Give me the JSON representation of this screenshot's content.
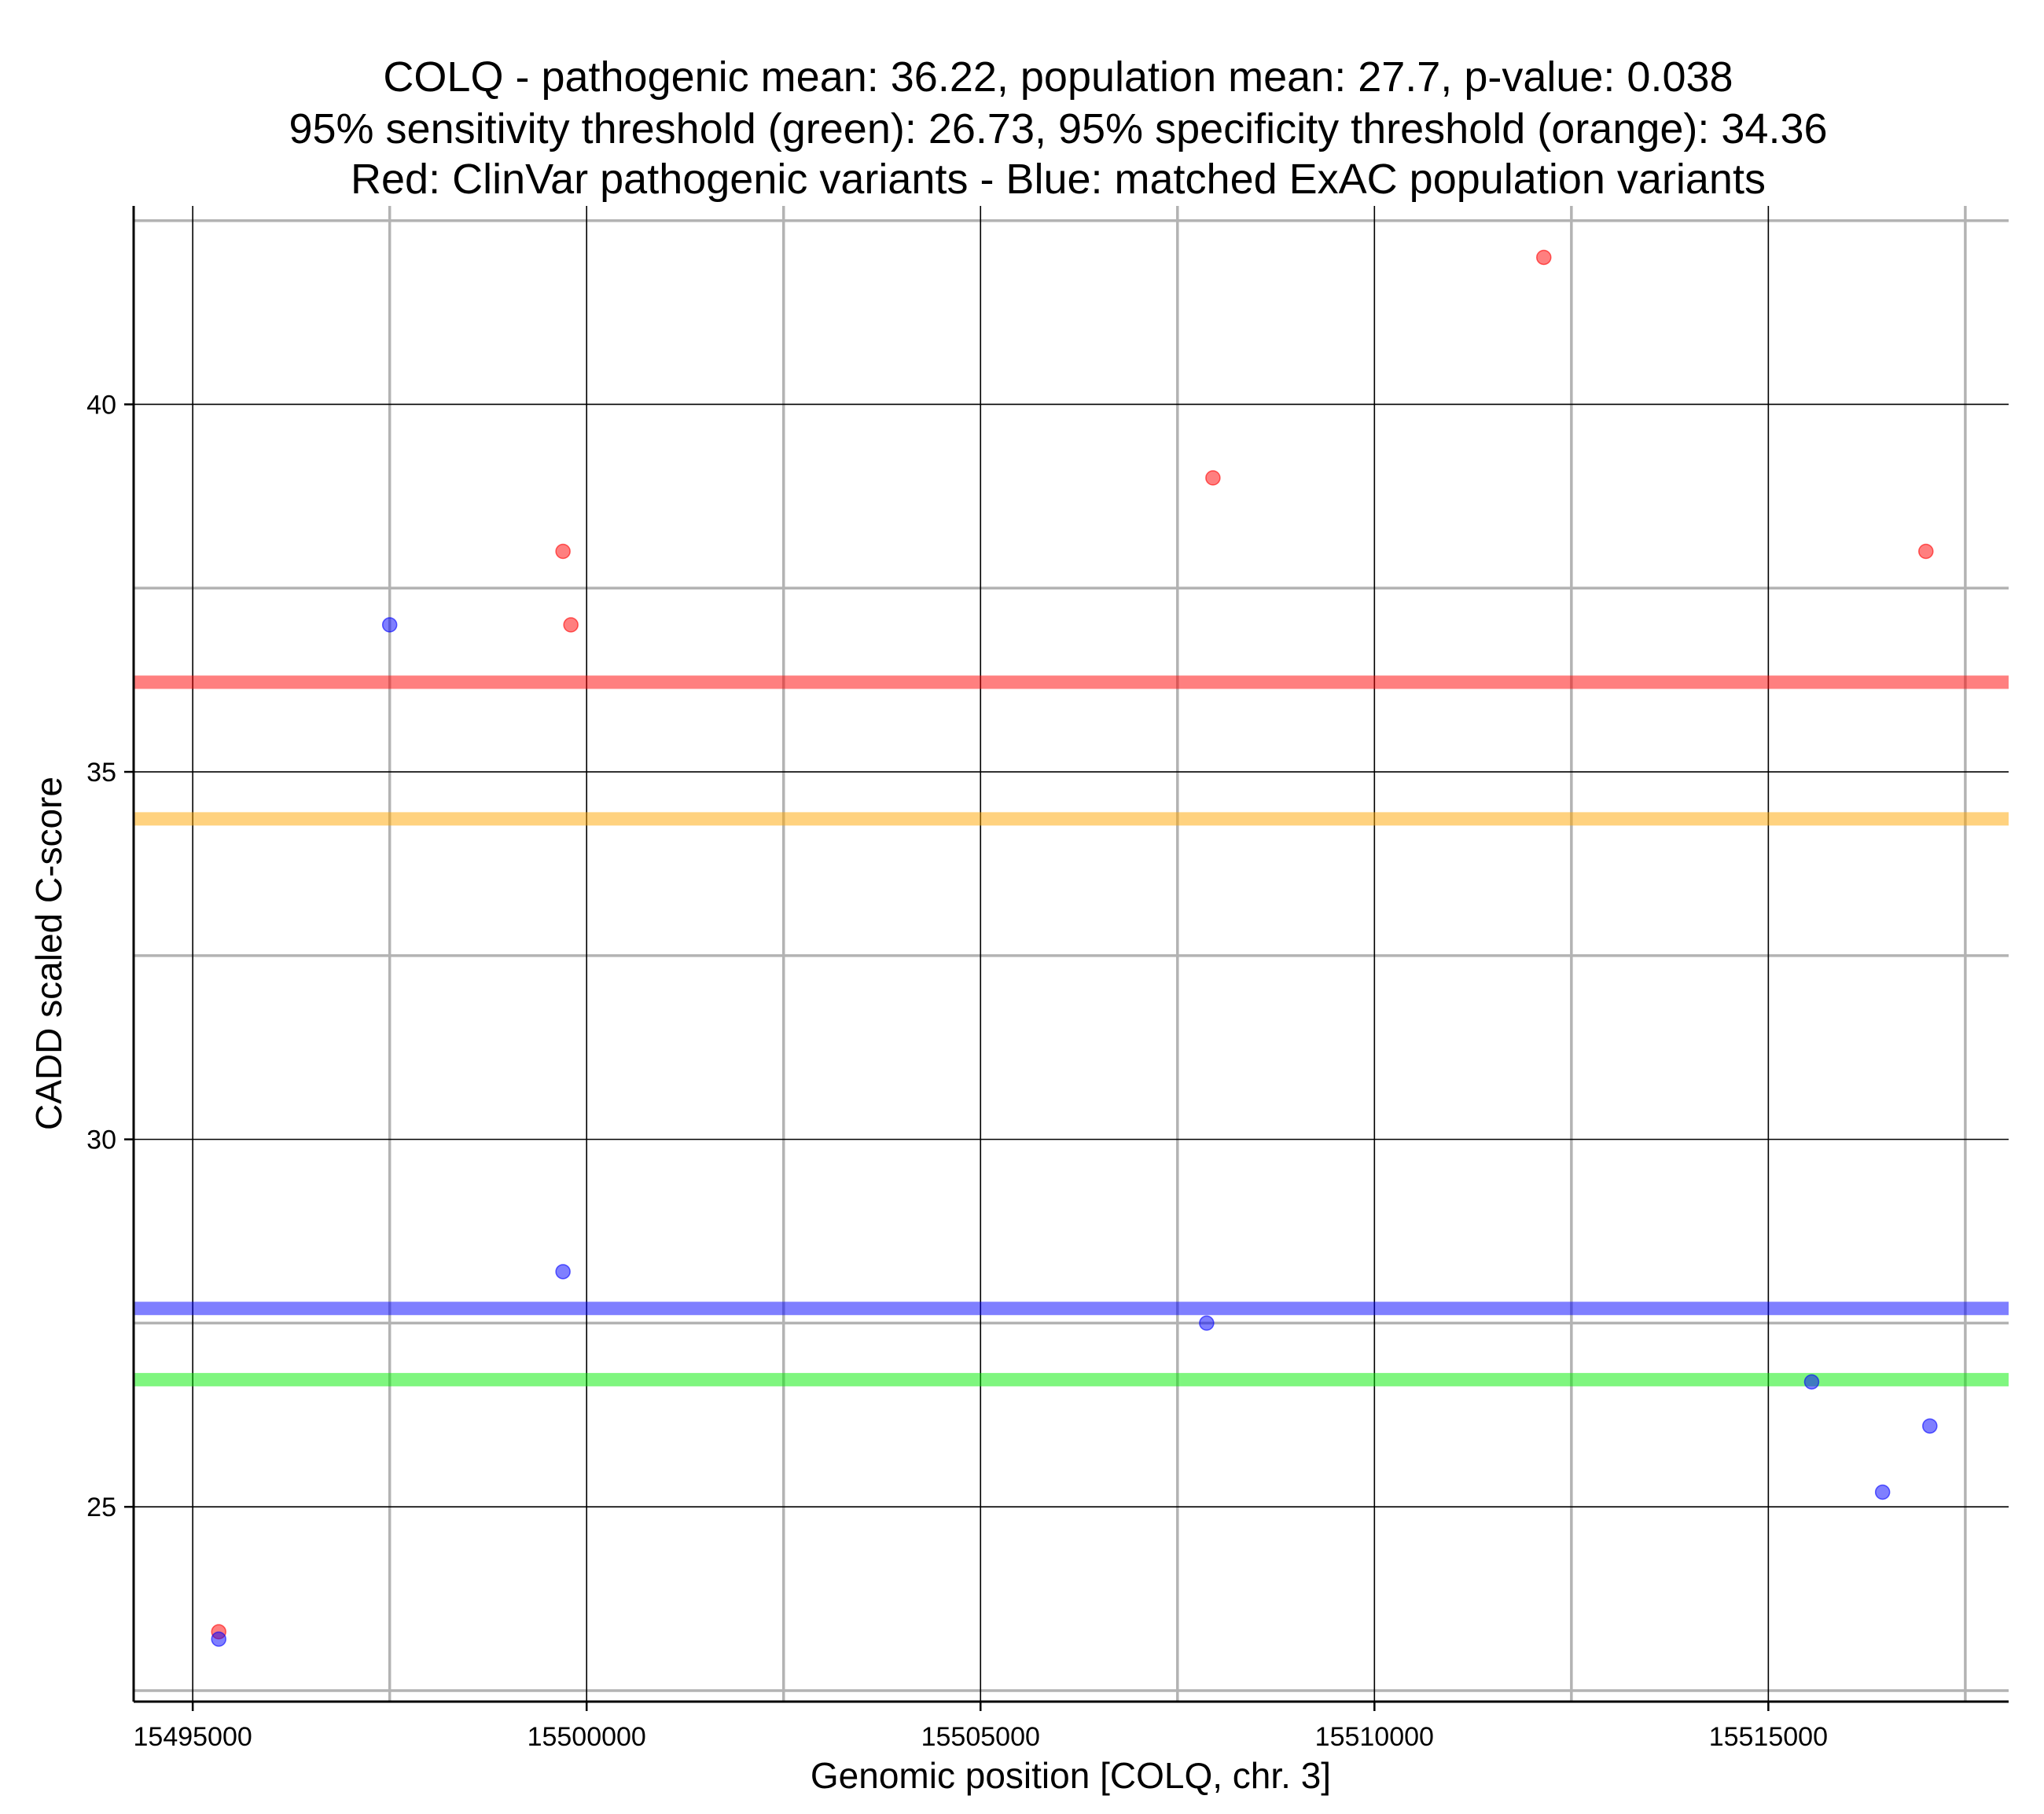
{
  "chart_data": {
    "type": "scatter",
    "title_lines": [
      "COLQ - pathogenic mean: 36.22, population mean: 27.7, p-value: 0.038",
      "95% sensitivity threshold (green): 26.73, 95% specificity threshold (orange): 34.36",
      "Red: ClinVar pathogenic variants - Blue: matched ExAC population variants"
    ],
    "xlabel": "Genomic position [COLQ, chr. 3]",
    "ylabel": "CADD scaled C-score",
    "xlim": [
      15494250,
      15518050
    ],
    "ylim": [
      22.35,
      42.7
    ],
    "x_major_ticks": [
      15495000,
      15500000,
      15505000,
      15510000,
      15515000
    ],
    "x_tick_labels": [
      "15495000",
      "15500000",
      "15505000",
      "15510000",
      "15515000"
    ],
    "x_minor_grid": [
      15497500,
      15502500,
      15507500,
      15512500,
      15517500
    ],
    "y_major_ticks": [
      25,
      30,
      35,
      40
    ],
    "y_tick_labels": [
      "25",
      "30",
      "35",
      "40"
    ],
    "y_minor_grid": [
      22.5,
      27.5,
      32.5,
      37.5,
      42.5
    ],
    "grid": true,
    "colors": {
      "pathogenic": "#ff0000",
      "population": "#0000ff",
      "sensitivity": "#00ee00",
      "specificity": "#ffa500",
      "major_grid": "#000000",
      "minor_grid": "#b3b3b3"
    },
    "series": [
      {
        "name": "ClinVar pathogenic variants",
        "color": "#ff0000",
        "points": [
          {
            "x": 15495330,
            "y": 23.3
          },
          {
            "x": 15499700,
            "y": 38.0
          },
          {
            "x": 15499800,
            "y": 37.0
          },
          {
            "x": 15507950,
            "y": 39.0
          },
          {
            "x": 15512150,
            "y": 42.0
          },
          {
            "x": 15517000,
            "y": 38.0
          }
        ]
      },
      {
        "name": "matched ExAC population variants",
        "color": "#0000ff",
        "points": [
          {
            "x": 15495330,
            "y": 23.2
          },
          {
            "x": 15497500,
            "y": 37.0
          },
          {
            "x": 15499700,
            "y": 28.2
          },
          {
            "x": 15507870,
            "y": 27.5
          },
          {
            "x": 15515550,
            "y": 26.7
          },
          {
            "x": 15516450,
            "y": 25.2
          },
          {
            "x": 15517050,
            "y": 26.1
          }
        ]
      }
    ],
    "reference_lines": [
      {
        "name": "pathogenic mean",
        "y": 36.22,
        "color": "#ff0000"
      },
      {
        "name": "95% specificity threshold",
        "y": 34.36,
        "color": "#ffa500"
      },
      {
        "name": "population mean",
        "y": 27.7,
        "color": "#0000ff"
      },
      {
        "name": "95% sensitivity threshold",
        "y": 26.73,
        "color": "#00ee00"
      }
    ]
  }
}
